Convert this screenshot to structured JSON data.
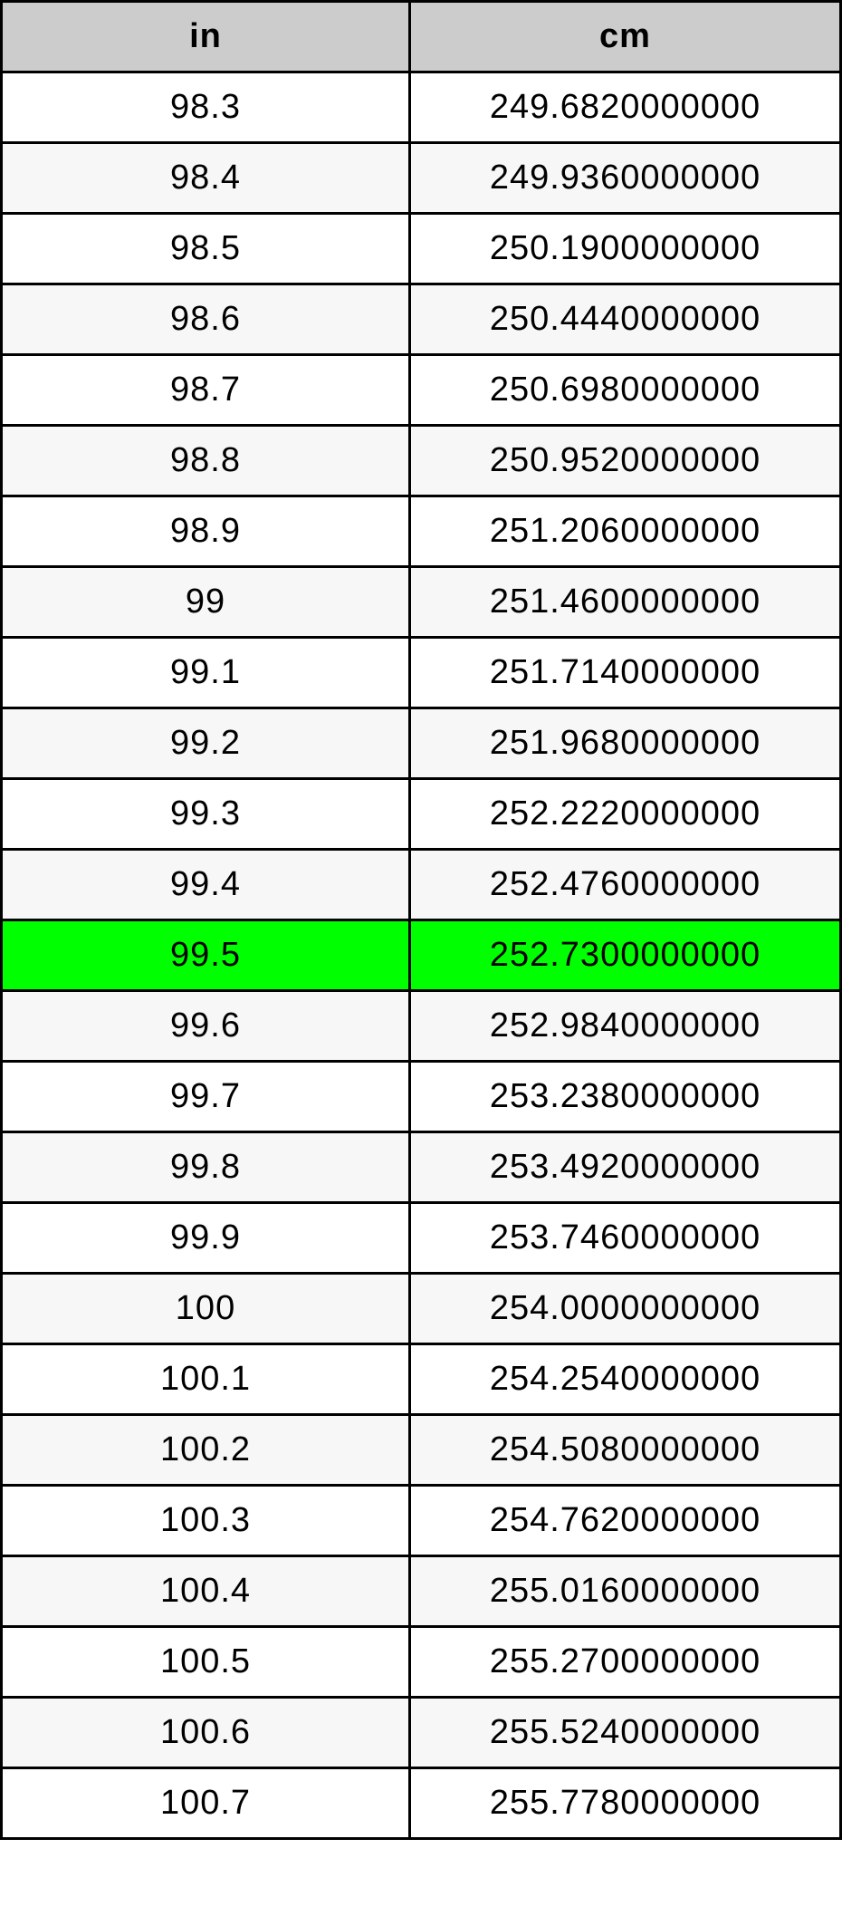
{
  "table": {
    "headers": [
      "in",
      "cm"
    ],
    "highlight_color": "#00ff00",
    "highlighted_row": 12,
    "rows": [
      [
        "98.3",
        "249.6820000000"
      ],
      [
        "98.4",
        "249.9360000000"
      ],
      [
        "98.5",
        "250.1900000000"
      ],
      [
        "98.6",
        "250.4440000000"
      ],
      [
        "98.7",
        "250.6980000000"
      ],
      [
        "98.8",
        "250.9520000000"
      ],
      [
        "98.9",
        "251.2060000000"
      ],
      [
        "99",
        "251.4600000000"
      ],
      [
        "99.1",
        "251.7140000000"
      ],
      [
        "99.2",
        "251.9680000000"
      ],
      [
        "99.3",
        "252.2220000000"
      ],
      [
        "99.4",
        "252.4760000000"
      ],
      [
        "99.5",
        "252.7300000000"
      ],
      [
        "99.6",
        "252.9840000000"
      ],
      [
        "99.7",
        "253.2380000000"
      ],
      [
        "99.8",
        "253.4920000000"
      ],
      [
        "99.9",
        "253.7460000000"
      ],
      [
        "100",
        "254.0000000000"
      ],
      [
        "100.1",
        "254.2540000000"
      ],
      [
        "100.2",
        "254.5080000000"
      ],
      [
        "100.3",
        "254.7620000000"
      ],
      [
        "100.4",
        "255.0160000000"
      ],
      [
        "100.5",
        "255.2700000000"
      ],
      [
        "100.6",
        "255.5240000000"
      ],
      [
        "100.7",
        "255.7780000000"
      ]
    ]
  }
}
